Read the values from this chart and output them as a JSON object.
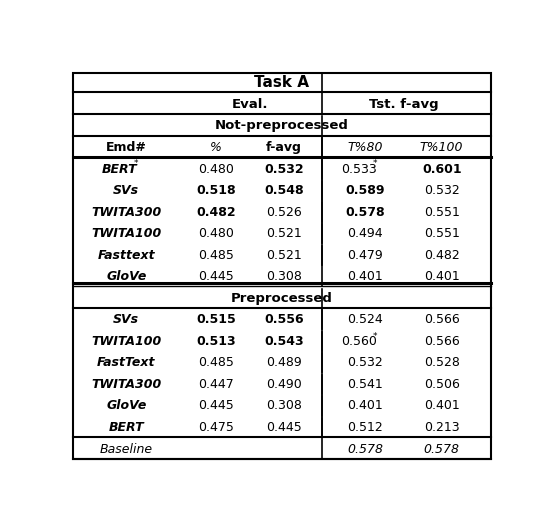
{
  "title": "Task A",
  "section1_label": "Not-preprocessed",
  "section2_label": "Preprocessed",
  "not_preprocessed": [
    {
      "name": "BERT",
      "name_super": "*",
      "pct": "0.480",
      "pct_bold": false,
      "favg": "0.532",
      "favg_bold": true,
      "t80": "0.533",
      "t80_super": "*",
      "t80_bold": false,
      "t100": "0.601",
      "t100_bold": true
    },
    {
      "name": "SVs",
      "name_super": "",
      "pct": "0.518",
      "pct_bold": true,
      "favg": "0.548",
      "favg_bold": true,
      "t80": "0.589",
      "t80_super": "",
      "t80_bold": true,
      "t100": "0.532",
      "t100_bold": false
    },
    {
      "name": "TWITA300",
      "name_super": "",
      "pct": "0.482",
      "pct_bold": true,
      "favg": "0.526",
      "favg_bold": false,
      "t80": "0.578",
      "t80_super": "",
      "t80_bold": true,
      "t100": "0.551",
      "t100_bold": false
    },
    {
      "name": "TWITA100",
      "name_super": "",
      "pct": "0.480",
      "pct_bold": false,
      "favg": "0.521",
      "favg_bold": false,
      "t80": "0.494",
      "t80_super": "",
      "t80_bold": false,
      "t100": "0.551",
      "t100_bold": false
    },
    {
      "name": "Fasttext",
      "name_super": "",
      "pct": "0.485",
      "pct_bold": false,
      "favg": "0.521",
      "favg_bold": false,
      "t80": "0.479",
      "t80_super": "",
      "t80_bold": false,
      "t100": "0.482",
      "t100_bold": false
    },
    {
      "name": "GloVe",
      "name_super": "",
      "pct": "0.445",
      "pct_bold": false,
      "favg": "0.308",
      "favg_bold": false,
      "t80": "0.401",
      "t80_super": "",
      "t80_bold": false,
      "t100": "0.401",
      "t100_bold": false
    }
  ],
  "preprocessed": [
    {
      "name": "SVs",
      "name_super": "",
      "pct": "0.515",
      "pct_bold": true,
      "favg": "0.556",
      "favg_bold": true,
      "t80": "0.524",
      "t80_super": "",
      "t80_bold": false,
      "t100": "0.566",
      "t100_bold": false
    },
    {
      "name": "TWITA100",
      "name_super": "",
      "pct": "0.513",
      "pct_bold": true,
      "favg": "0.543",
      "favg_bold": true,
      "t80": "0.560",
      "t80_super": "*",
      "t80_bold": false,
      "t100": "0.566",
      "t100_bold": false
    },
    {
      "name": "FastText",
      "name_super": "",
      "pct": "0.485",
      "pct_bold": false,
      "favg": "0.489",
      "favg_bold": false,
      "t80": "0.532",
      "t80_super": "",
      "t80_bold": false,
      "t100": "0.528",
      "t100_bold": false
    },
    {
      "name": "TWITA300",
      "name_super": "",
      "pct": "0.447",
      "pct_bold": false,
      "favg": "0.490",
      "favg_bold": false,
      "t80": "0.541",
      "t80_super": "",
      "t80_bold": false,
      "t100": "0.506",
      "t100_bold": false
    },
    {
      "name": "GloVe",
      "name_super": "",
      "pct": "0.445",
      "pct_bold": false,
      "favg": "0.308",
      "favg_bold": false,
      "t80": "0.401",
      "t80_super": "",
      "t80_bold": false,
      "t100": "0.401",
      "t100_bold": false
    },
    {
      "name": "BERT",
      "name_super": "",
      "pct": "0.475",
      "pct_bold": false,
      "favg": "0.445",
      "favg_bold": false,
      "t80": "0.512",
      "t80_super": "",
      "t80_bold": false,
      "t100": "0.213",
      "t100_bold": false
    }
  ],
  "baseline": {
    "name": "Baseline",
    "t80": "0.578",
    "t100": "0.578"
  }
}
